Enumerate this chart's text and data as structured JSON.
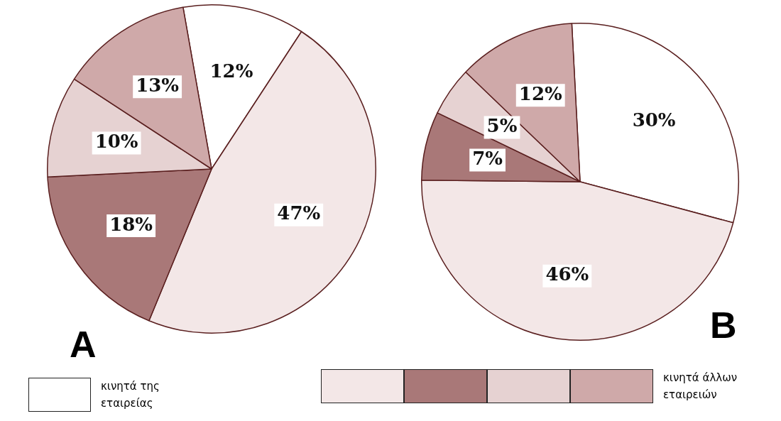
{
  "chart_data": [
    {
      "type": "pie",
      "title": "A",
      "categories": [
        null,
        null,
        null,
        null,
        null
      ],
      "values": [
        12,
        47,
        18,
        10,
        13
      ],
      "value_labels": [
        "12%",
        "47%",
        "18%",
        "10%",
        "13%"
      ],
      "colors": [
        "#ffffff",
        "#f3e7e7",
        "#a97878",
        "#e6d2d2",
        "#cfa9a9"
      ],
      "annotations": [
        "κινητά της εταιρείας"
      ]
    },
    {
      "type": "pie",
      "title": "B",
      "categories": [
        null,
        null,
        null,
        null,
        null
      ],
      "values": [
        30,
        46,
        7,
        5,
        12
      ],
      "value_labels": [
        "30%",
        "46%",
        "7%",
        "5%",
        "12%"
      ],
      "colors": [
        "#ffffff",
        "#f3e7e7",
        "#a97878",
        "#e6d2d2",
        "#cfa9a9"
      ],
      "annotations": [
        "κινητά άλλων εταιρειών"
      ]
    }
  ]
}
